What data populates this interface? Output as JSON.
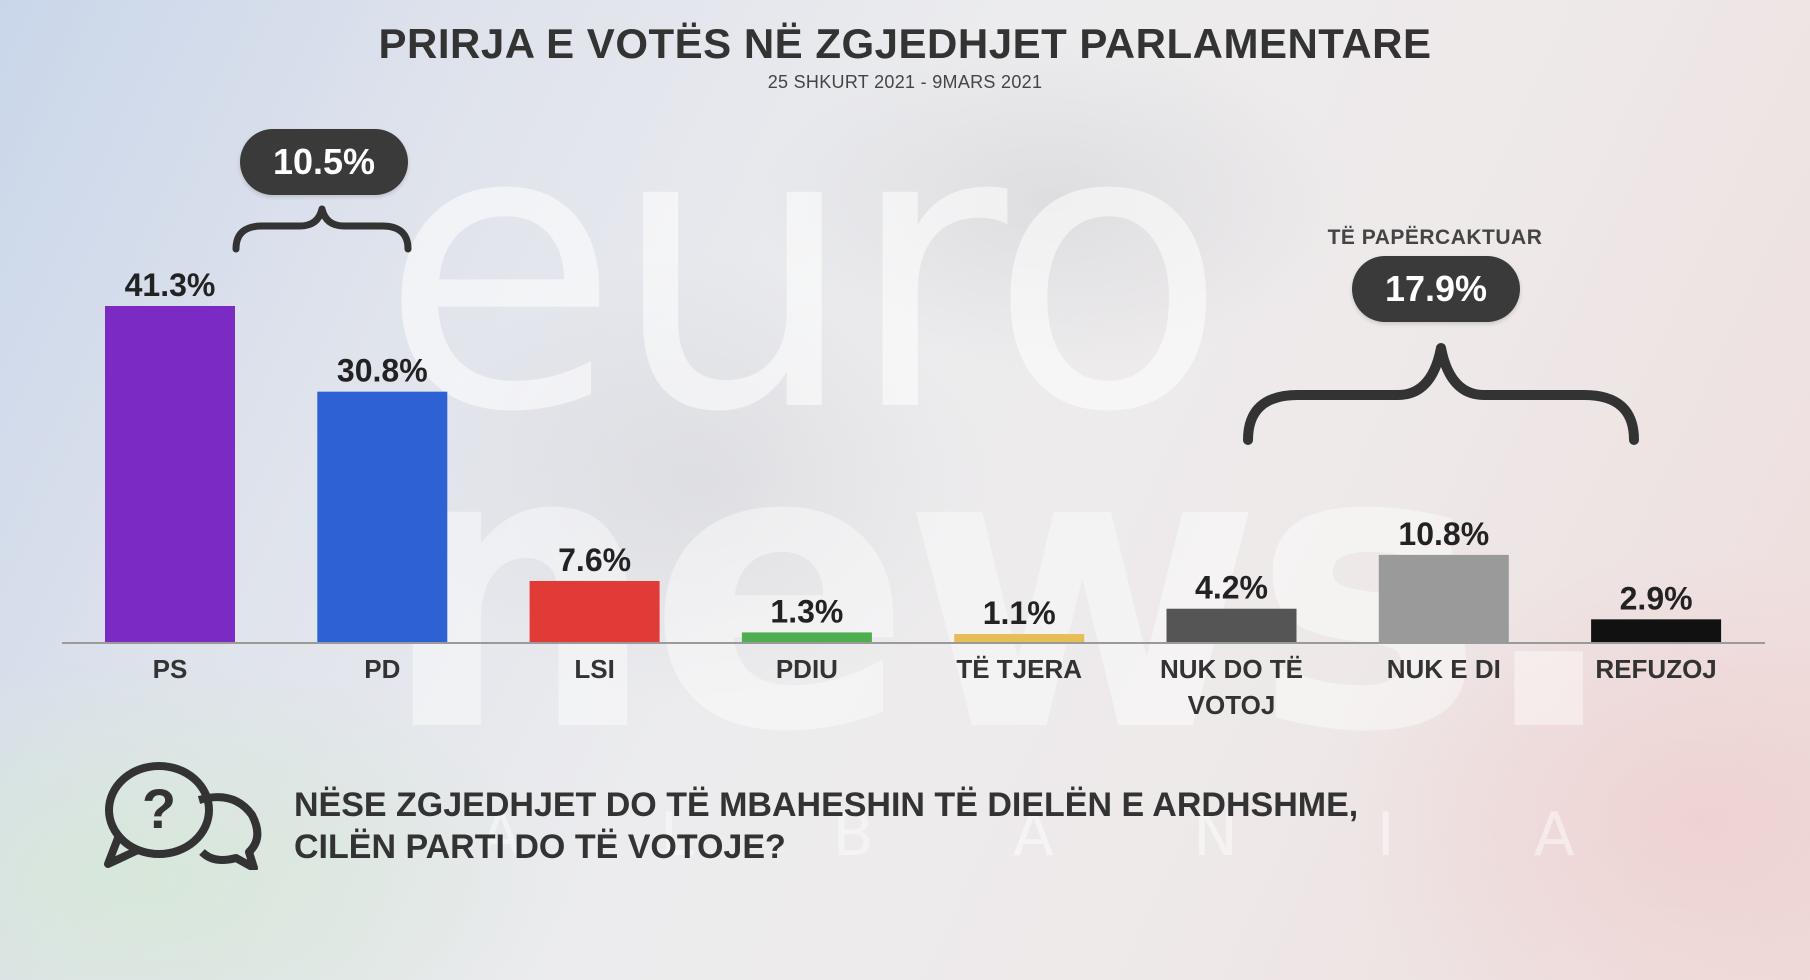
{
  "header": {
    "title": "PRIRJA E VOTËS NË ZGJEDHJET PARLAMENTARE",
    "subtitle": "25 SHKURT 2021 - 9MARS 2021"
  },
  "annotations": {
    "difference_value": "10.5%",
    "undecided_label": "TË PAPËRCAKTUAR",
    "undecided_value": "17.9%"
  },
  "question": {
    "line1": "NËSE ZGJEDHJET DO TË MBAHESHIN TË DIELËN E ARDHSHME,",
    "line2": "CILËN PARTI DO TË VOTOJE?",
    "icon": "speech-bubbles-question-icon"
  },
  "watermark": {
    "line1": "euro",
    "line2": "news.",
    "line3": "A L B A N I A"
  },
  "chart_data": {
    "type": "bar",
    "title": "PRIRJA E VOTËS NË ZGJEDHJET PARLAMENTARE",
    "categories": [
      [
        "PS"
      ],
      [
        "PD"
      ],
      [
        "LSI"
      ],
      [
        "PDIU"
      ],
      [
        "TË TJERA"
      ],
      [
        "NUK DO TË",
        "VOTOJ"
      ],
      [
        "NUK E DI"
      ],
      [
        "REFUZOJ"
      ]
    ],
    "values": [
      41.3,
      30.8,
      7.6,
      1.3,
      1.1,
      4.2,
      10.8,
      2.9
    ],
    "value_labels": [
      "41.3%",
      "30.8%",
      "7.6%",
      "1.3%",
      "1.1%",
      "4.2%",
      "10.8%",
      "2.9%"
    ],
    "colors": [
      "#7b2ac3",
      "#2e62d4",
      "#e23a36",
      "#4fae4f",
      "#e6be55",
      "#555555",
      "#9a9a9a",
      "#111111"
    ],
    "ylim": [
      0,
      41.3
    ],
    "grid": false,
    "legend": false
  }
}
